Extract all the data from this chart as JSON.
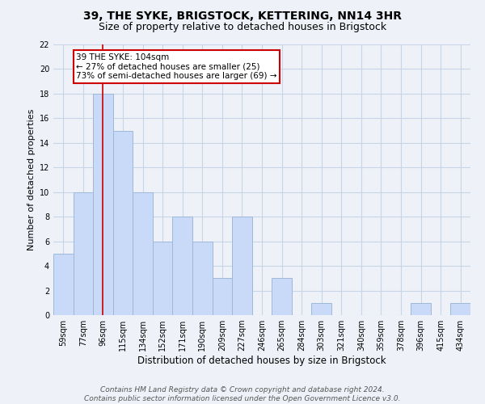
{
  "title1": "39, THE SYKE, BRIGSTOCK, KETTERING, NN14 3HR",
  "title2": "Size of property relative to detached houses in Brigstock",
  "xlabel": "Distribution of detached houses by size in Brigstock",
  "ylabel": "Number of detached properties",
  "categories": [
    "59sqm",
    "77sqm",
    "96sqm",
    "115sqm",
    "134sqm",
    "152sqm",
    "171sqm",
    "190sqm",
    "209sqm",
    "227sqm",
    "246sqm",
    "265sqm",
    "284sqm",
    "303sqm",
    "321sqm",
    "340sqm",
    "359sqm",
    "378sqm",
    "396sqm",
    "415sqm",
    "434sqm"
  ],
  "values": [
    5,
    10,
    18,
    15,
    10,
    6,
    8,
    6,
    3,
    8,
    0,
    3,
    0,
    1,
    0,
    0,
    0,
    0,
    1,
    0,
    1
  ],
  "bar_color": "#c9daf8",
  "bar_edge_color": "#a0b8d8",
  "red_line_index": 2,
  "annotation_lines": [
    "39 THE SYKE: 104sqm",
    "← 27% of detached houses are smaller (25)",
    "73% of semi-detached houses are larger (69) →"
  ],
  "annotation_box_facecolor": "#ffffff",
  "annotation_box_edgecolor": "#cc0000",
  "ylim": [
    0,
    22
  ],
  "yticks": [
    0,
    2,
    4,
    6,
    8,
    10,
    12,
    14,
    16,
    18,
    20,
    22
  ],
  "grid_color": "#c8d4e8",
  "background_color": "#eef2f8",
  "footer_line1": "Contains HM Land Registry data © Crown copyright and database right 2024.",
  "footer_line2": "Contains public sector information licensed under the Open Government Licence v3.0.",
  "title1_fontsize": 10,
  "title2_fontsize": 9,
  "xlabel_fontsize": 8.5,
  "ylabel_fontsize": 8,
  "tick_fontsize": 7,
  "annotation_fontsize": 7.5,
  "footer_fontsize": 6.5
}
